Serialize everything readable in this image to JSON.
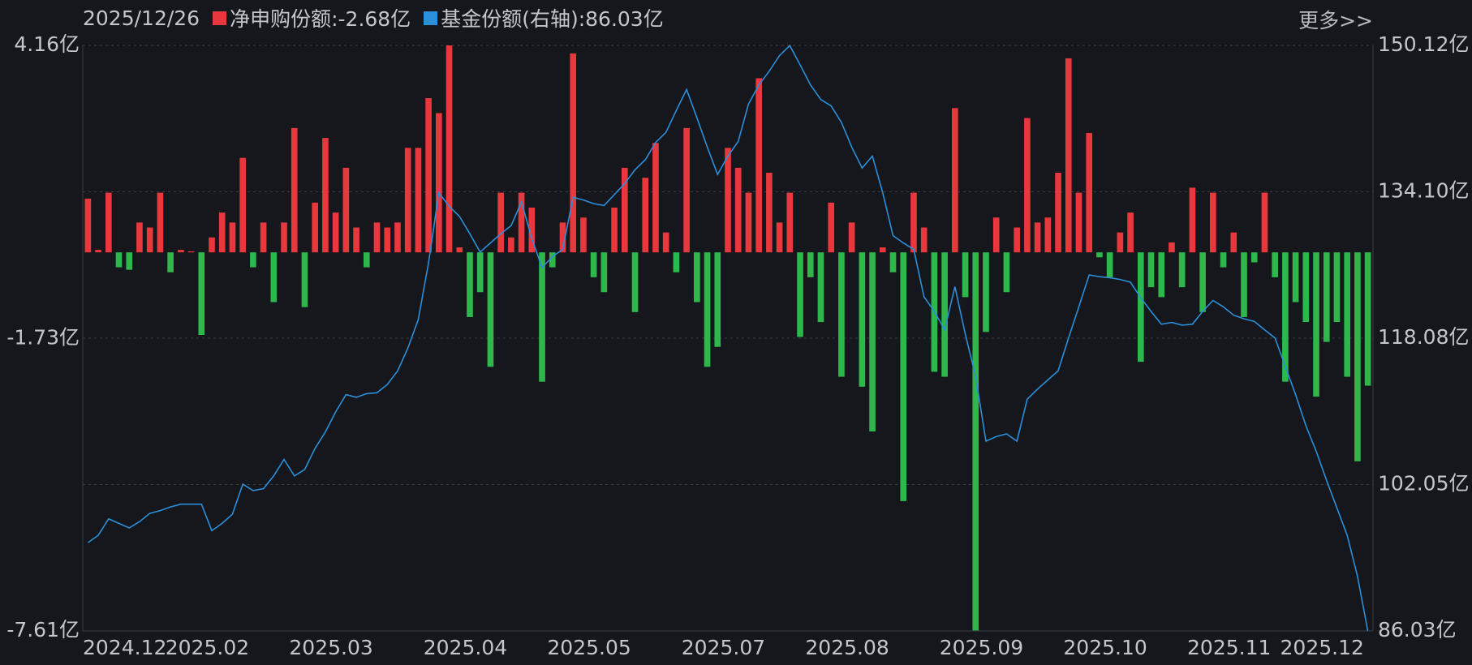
{
  "chart_data": {
    "type": "bar-line",
    "date": "2025/12/26",
    "more_link": "更多>>",
    "categories": [
      "2024.12",
      null,
      null,
      null,
      null,
      null,
      null,
      null,
      "2025.02",
      null,
      null,
      null,
      null,
      null,
      null,
      null,
      null,
      null,
      null,
      null,
      "2025.03",
      null,
      null,
      null,
      null,
      null,
      null,
      null,
      null,
      null,
      null,
      null,
      null,
      "2025.04",
      null,
      null,
      null,
      null,
      null,
      null,
      null,
      null,
      null,
      null,
      null,
      "2025.05",
      null,
      null,
      null,
      null,
      null,
      null,
      null,
      null,
      null,
      null,
      null,
      null,
      "2025.07",
      null,
      null,
      null,
      null,
      null,
      null,
      null,
      null,
      null,
      null,
      null,
      "2025.08",
      null,
      null,
      null,
      null,
      null,
      null,
      null,
      null,
      null,
      null,
      null,
      null,
      "2025.09",
      null,
      null,
      null,
      null,
      null,
      null,
      null,
      null,
      null,
      null,
      null,
      "2025.10",
      null,
      null,
      null,
      null,
      null,
      null,
      null,
      null,
      null,
      null,
      null,
      "2025.11",
      null,
      null,
      null,
      null,
      null,
      null,
      null,
      null,
      "2025.12",
      null,
      null,
      null,
      null,
      null,
      null,
      null,
      null
    ],
    "series": [
      {
        "name": "净申购份额:-2.68亿",
        "color": "#e8383d",
        "negative_color": "#2eb84c",
        "values": [
          1.08,
          0.05,
          1.2,
          -0.3,
          -0.35,
          0.6,
          0.5,
          1.2,
          -0.4,
          0.05,
          0.02,
          -1.66,
          0.3,
          0.8,
          0.6,
          1.9,
          -0.3,
          0.6,
          -1.0,
          0.6,
          2.5,
          -1.1,
          1.0,
          2.3,
          0.8,
          1.7,
          0.5,
          -0.3,
          0.6,
          0.5,
          0.6,
          2.1,
          2.1,
          3.1,
          2.8,
          4.16,
          0.1,
          -1.3,
          -0.8,
          -2.3,
          1.2,
          0.3,
          1.2,
          0.9,
          -2.6,
          -0.3,
          0.6,
          4.0,
          0.7,
          -0.5,
          -0.8,
          0.9,
          1.7,
          -1.2,
          1.5,
          2.2,
          0.4,
          -0.4,
          2.5,
          -1.0,
          -2.3,
          -1.9,
          2.1,
          1.7,
          1.2,
          3.5,
          1.6,
          0.6,
          1.2,
          -1.7,
          -0.5,
          -1.4,
          1.0,
          -2.5,
          0.6,
          -2.7,
          -3.6,
          0.1,
          -0.4,
          -5.0,
          1.2,
          0.5,
          -2.4,
          -2.5,
          2.9,
          -0.9,
          -7.6,
          -1.6,
          0.7,
          -0.8,
          0.5,
          2.7,
          0.6,
          0.7,
          1.6,
          3.9,
          1.2,
          2.4,
          -0.1,
          -0.5,
          0.4,
          0.8,
          -2.2,
          -0.7,
          -0.9,
          0.2,
          -0.7,
          1.3,
          -1.2,
          1.2,
          -0.3,
          0.4,
          -1.3,
          -0.2,
          1.2,
          -0.5,
          -2.6,
          -1.0,
          -1.4,
          -2.9,
          -1.8,
          -1.4,
          -2.5,
          -4.2,
          -2.68
        ]
      },
      {
        "name": "基金份额(右轴):86.03亿",
        "color": "#2b8fd9",
        "axis": "y2",
        "values": [
          95.7,
          96.5,
          98.3,
          97.8,
          97.3,
          98.0,
          98.9,
          99.2,
          99.6,
          99.9,
          99.9,
          99.9,
          97.0,
          97.8,
          98.8,
          102.1,
          101.4,
          101.6,
          103.0,
          104.8,
          103.0,
          103.7,
          106.0,
          107.8,
          110.0,
          111.9,
          111.6,
          112.0,
          112.1,
          113.0,
          114.5,
          117.0,
          120.1,
          126.3,
          134.0,
          132.5,
          131.4,
          129.5,
          127.5,
          128.5,
          129.5,
          130.4,
          133.0,
          129.0,
          125.8,
          127.0,
          127.8,
          133.5,
          133.2,
          132.8,
          132.6,
          133.8,
          135.0,
          136.5,
          137.6,
          139.5,
          140.6,
          143.0,
          145.3,
          142.2,
          139.0,
          136.0,
          138.0,
          139.6,
          143.7,
          145.8,
          147.3,
          149.0,
          150.1,
          148.0,
          145.8,
          144.2,
          143.5,
          141.7,
          139.0,
          136.7,
          138.0,
          134.0,
          129.3,
          128.5,
          127.8,
          122.6,
          121.0,
          119.0,
          123.7,
          118.5,
          113.9,
          106.8,
          107.3,
          107.6,
          106.8,
          111.4,
          112.5,
          113.5,
          114.5,
          118.1,
          121.5,
          125.0,
          124.8,
          124.7,
          124.5,
          124.2,
          122.5,
          121.0,
          119.6,
          119.8,
          119.5,
          119.6,
          121.0,
          122.2,
          121.5,
          120.6,
          120.2,
          119.9,
          119.0,
          118.1,
          115.0,
          111.9,
          108.5,
          105.7,
          102.5,
          99.5,
          96.5,
          92.0,
          86.03
        ]
      }
    ],
    "ylim": [
      -7.61,
      4.16
    ],
    "yticks": [
      {
        "value": 4.16,
        "label": "4.16亿"
      },
      {
        "value": -1.73,
        "label": "-1.73亿"
      },
      {
        "value": -7.61,
        "label": "-7.61亿"
      }
    ],
    "y2lim": [
      86.03,
      150.12
    ],
    "y2ticks": [
      {
        "value": 86.03,
        "label": "86.03亿"
      },
      {
        "value": 102.05,
        "label": "102.05亿"
      },
      {
        "value": 118.08,
        "label": "118.08亿"
      },
      {
        "value": 134.1,
        "label": "134.10亿"
      },
      {
        "value": 150.12,
        "label": "150.12亿"
      }
    ],
    "grid": true
  }
}
